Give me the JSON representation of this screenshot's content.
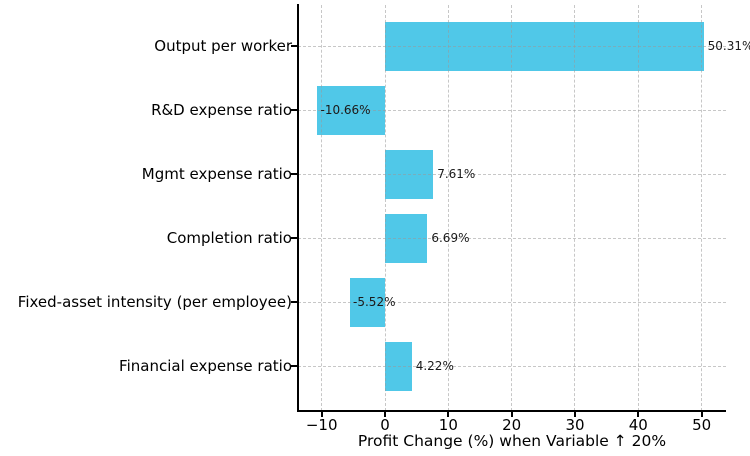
{
  "chart_data": {
    "type": "bar",
    "orientation": "horizontal",
    "title": "",
    "xlabel": "Profit Change (%) when Variable ↑ 20%",
    "ylabel": "",
    "categories": [
      "Output per worker",
      "R&D expense ratio",
      "Mgmt expense ratio",
      "Completion ratio",
      "Fixed-asset intensity (per employee)",
      "Financial expense ratio"
    ],
    "values": [
      50.31,
      -10.66,
      7.61,
      6.69,
      -5.52,
      4.22
    ],
    "bar_labels": [
      "50.31%",
      "-10.66%",
      "7.61%",
      "6.69%",
      "-5.52%",
      "4.22%"
    ],
    "x_ticks": [
      -10,
      0,
      10,
      20,
      30,
      40,
      50
    ],
    "x_tick_labels": [
      "−10",
      "0",
      "10",
      "20",
      "30",
      "40",
      "50"
    ],
    "xlim": [
      -13.7,
      53.8
    ],
    "grid": true,
    "grid_style": "dashed",
    "legend": "none",
    "bar_color": "#50C8E8",
    "grid_color": "#9a9a9a",
    "axis_color": "#000000",
    "value_label_color": "#1a1a1a"
  }
}
